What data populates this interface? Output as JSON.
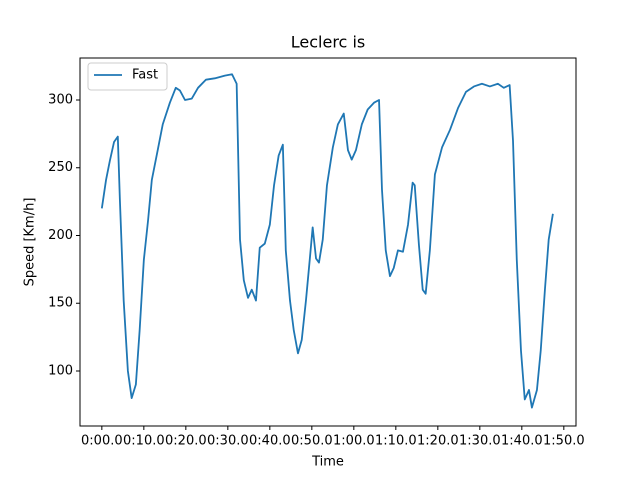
{
  "chart_data": {
    "type": "line",
    "title": "Leclerc is",
    "x_label": "Time",
    "y_label": "Speed [Km/h]",
    "x": [
      0,
      1,
      1.9,
      2.9,
      3.8,
      4.3,
      5.2,
      6.2,
      7.1,
      8.1,
      9,
      10,
      11,
      11.9,
      13.3,
      14.5,
      16.2,
      17.6,
      18.6,
      19.8,
      21.4,
      22.9,
      24.8,
      26.9,
      29.3,
      31,
      32.1,
      32.9,
      33.8,
      34.8,
      35.7,
      36.7,
      37.6,
      38.8,
      40,
      41,
      42.1,
      43.1,
      43.8,
      44.8,
      45.7,
      46.7,
      47.6,
      48.6,
      49.5,
      50.2,
      51,
      51.7,
      52.6,
      53.6,
      55,
      56.2,
      57.6,
      58.6,
      59.5,
      60.5,
      61.9,
      63.3,
      64.8,
      66,
      66.7,
      67.6,
      68.6,
      69.5,
      70.5,
      71.7,
      72.9,
      74,
      74.5,
      75.5,
      76.4,
      77.1,
      78.1,
      79.3,
      81,
      82.9,
      84.8,
      86.7,
      88.6,
      90.5,
      92.4,
      94.3,
      95.7,
      97.1,
      97.9,
      98.8,
      99.8,
      100.7,
      101.7,
      102.4,
      103.6,
      104.5,
      105.5,
      106.4,
      107.4
    ],
    "series": [
      {
        "name": "Fast",
        "color": "#1f77b4",
        "values": [
          220,
          241,
          255,
          269,
          273,
          226,
          152,
          100,
          80,
          90,
          130,
          182,
          211,
          241,
          263,
          282,
          298,
          309,
          307,
          300,
          301,
          309,
          315,
          316,
          318,
          319,
          312,
          197,
          167,
          154,
          160,
          152,
          191,
          194,
          208,
          237,
          259,
          267,
          189,
          152,
          130,
          113,
          123,
          152,
          182,
          206,
          183,
          180,
          197,
          237,
          265,
          282,
          290,
          263,
          256,
          263,
          282,
          293,
          298,
          300,
          234,
          189,
          170,
          176,
          189,
          188,
          208,
          239,
          237,
          193,
          160,
          157,
          189,
          245,
          265,
          278,
          294,
          306,
          310,
          312,
          310,
          312,
          309,
          311,
          270,
          182,
          115,
          79,
          86,
          73,
          86,
          115,
          160,
          197,
          216
        ]
      }
    ],
    "xlim": [
      -5.2,
      112.9
    ],
    "ylim": [
      59.4,
      331
    ],
    "xticks": [
      {
        "value": 0,
        "label": "0:00.0"
      },
      {
        "value": 10,
        "label": "0:10.0"
      },
      {
        "value": 20,
        "label": "0:20.0"
      },
      {
        "value": 30,
        "label": "0:30.0"
      },
      {
        "value": 40,
        "label": "0:40.0"
      },
      {
        "value": 50,
        "label": "0:50.0"
      },
      {
        "value": 60,
        "label": "1:00.0"
      },
      {
        "value": 70,
        "label": "1:10.0"
      },
      {
        "value": 80,
        "label": "1:20.0"
      },
      {
        "value": 90,
        "label": "1:30.0"
      },
      {
        "value": 100,
        "label": "1:40.0"
      },
      {
        "value": 110,
        "label": "1:50.0"
      }
    ],
    "yticks": [
      100,
      150,
      200,
      250,
      300
    ],
    "legend": "upper left",
    "grid": false
  }
}
